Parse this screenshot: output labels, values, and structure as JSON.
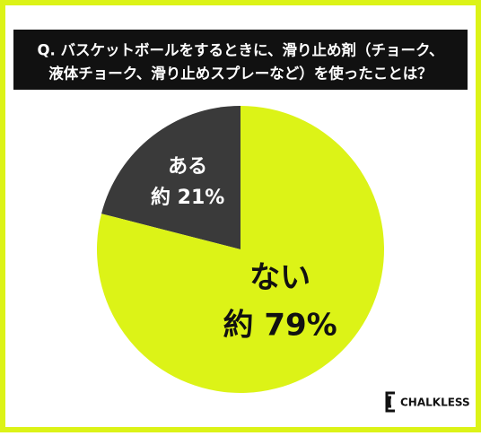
{
  "chart_data": {
    "type": "pie",
    "title": [
      "Q. バスケットボールをするときに、滑り止め剤（チョーク、",
      "液体チョーク、滑り止めスプレーなど）を使ったことは？"
    ],
    "categories": [
      "ある",
      "ない"
    ],
    "values": [
      21,
      79
    ],
    "value_labels": [
      "約 21%",
      "約 79%"
    ],
    "colors": [
      "#3a3a3a",
      "#dcf317"
    ],
    "label_colors": [
      "#ffffff",
      "#111111"
    ],
    "logo": "CHALKLESS"
  }
}
